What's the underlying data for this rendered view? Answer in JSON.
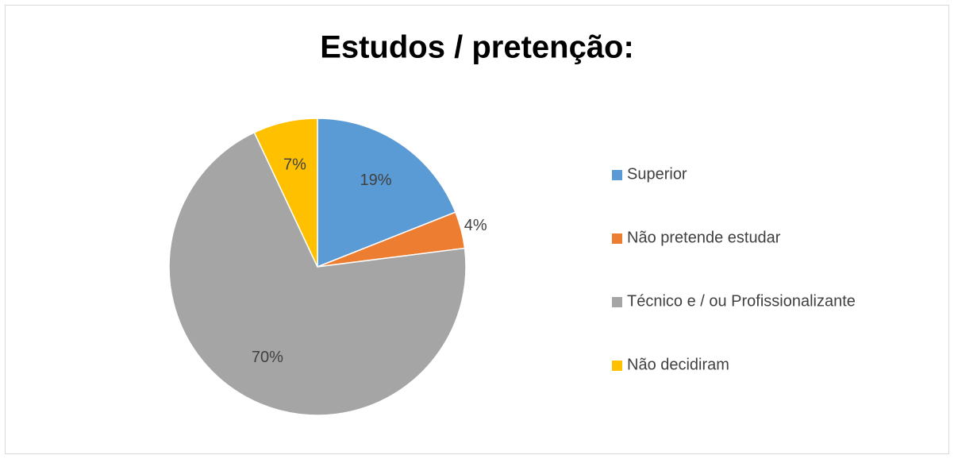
{
  "chart_data": {
    "type": "pie",
    "title": "Estudos / pretenção:",
    "categories": [
      "Superior",
      "Não pretende estudar",
      "Técnico e / ou Profissionalizante",
      "Não decidiram"
    ],
    "values": [
      19,
      4,
      70,
      7
    ],
    "value_labels": [
      "19%",
      "4%",
      "70%",
      "7%"
    ],
    "colors": [
      "#5b9bd5",
      "#ed7d31",
      "#a5a5a5",
      "#ffc000"
    ],
    "legend": "right"
  }
}
